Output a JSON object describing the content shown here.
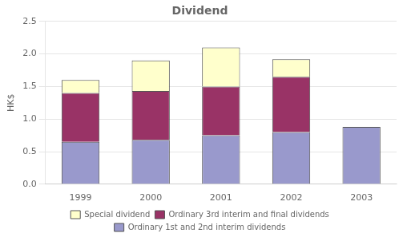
{
  "chart_data": {
    "type": "bar",
    "title": "Dividend",
    "y_label": "HK$",
    "categories": [
      "1999",
      "2000",
      "2001",
      "2002",
      "2003"
    ],
    "series": [
      {
        "name": "Ordinary 1st and 2nd interim dividends",
        "color": "#9999cc",
        "values": [
          0.65,
          0.68,
          0.75,
          0.8,
          0.88
        ]
      },
      {
        "name": "Ordinary 3rd interim and final dividends",
        "color": "#993366",
        "values": [
          0.75,
          0.75,
          0.75,
          0.85,
          0.0
        ]
      },
      {
        "name": "Special dividend",
        "color": "#ffffcc",
        "values": [
          0.2,
          0.47,
          0.6,
          0.27,
          0.0
        ]
      }
    ],
    "stacked": true,
    "ylim": [
      0,
      2.5
    ],
    "yticks": [
      {
        "value": 0,
        "label": "0.0"
      },
      {
        "value": 0.5,
        "label": "0.5"
      },
      {
        "value": 1,
        "label": "1.0"
      },
      {
        "value": 1.5,
        "label": "1.5"
      },
      {
        "value": 2,
        "label": "2.0"
      },
      {
        "value": 2.5,
        "label": "2.5"
      }
    ],
    "grid": true,
    "legend": "bottom"
  }
}
